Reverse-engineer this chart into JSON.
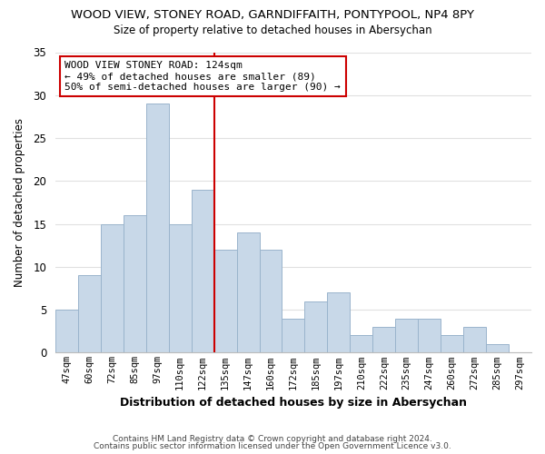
{
  "title": "WOOD VIEW, STONEY ROAD, GARNDIFFAITH, PONTYPOOL, NP4 8PY",
  "subtitle": "Size of property relative to detached houses in Abersychan",
  "xlabel": "Distribution of detached houses by size in Abersychan",
  "ylabel": "Number of detached properties",
  "footer_line1": "Contains HM Land Registry data © Crown copyright and database right 2024.",
  "footer_line2": "Contains public sector information licensed under the Open Government Licence v3.0.",
  "bar_labels": [
    "47sqm",
    "60sqm",
    "72sqm",
    "85sqm",
    "97sqm",
    "110sqm",
    "122sqm",
    "135sqm",
    "147sqm",
    "160sqm",
    "172sqm",
    "185sqm",
    "197sqm",
    "210sqm",
    "222sqm",
    "235sqm",
    "247sqm",
    "260sqm",
    "272sqm",
    "285sqm",
    "297sqm"
  ],
  "bar_values": [
    5,
    9,
    15,
    16,
    29,
    15,
    19,
    12,
    14,
    12,
    4,
    6,
    7,
    2,
    3,
    4,
    4,
    2,
    3,
    1,
    0
  ],
  "bar_color": "#c8d8e8",
  "bar_edge_color": "#9ab4cc",
  "property_line_x": 6.5,
  "property_line_color": "#cc0000",
  "annotation_text": "WOOD VIEW STONEY ROAD: 124sqm\n← 49% of detached houses are smaller (89)\n50% of semi-detached houses are larger (90) →",
  "annotation_box_color": "#ffffff",
  "annotation_box_edge_color": "#cc0000",
  "ylim": [
    0,
    35
  ],
  "yticks": [
    0,
    5,
    10,
    15,
    20,
    25,
    30,
    35
  ],
  "background_color": "#ffffff",
  "grid_color": "#e0e0e0"
}
